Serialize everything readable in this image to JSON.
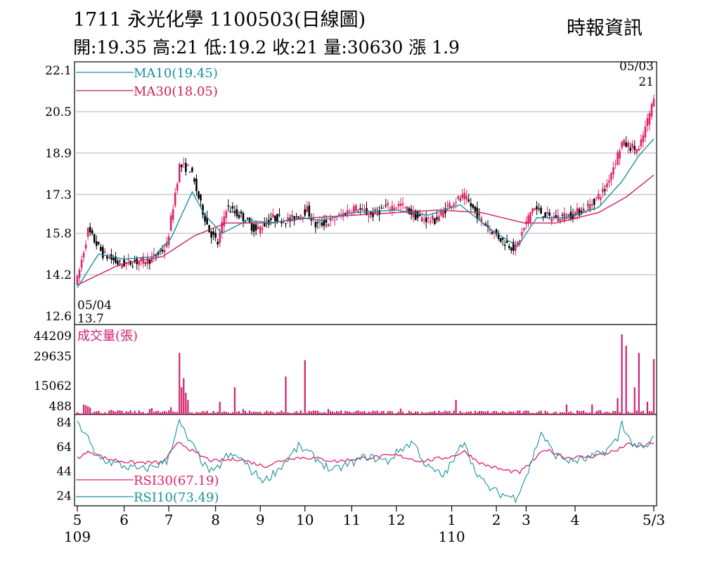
{
  "header": {
    "title": "1711  永光化學 1100503(日線圖)",
    "source": "時報資訊",
    "stats": "開:19.35 高:21 低:19.2 收:21 量:30630 漲 1.9"
  },
  "colors": {
    "up": "#e0206a",
    "down": "#000000",
    "ma10": "#1a8fa0",
    "ma30": "#cc1f5a",
    "rsi30": "#e0206a",
    "rsi10": "#1a8fa0",
    "grid": "#b0b0b0",
    "volume": "#d0206a"
  },
  "chart_data": [
    {
      "type": "candlestick",
      "ylim": [
        12.6,
        22.1
      ],
      "yticks": [
        "22.1",
        "20.5",
        "18.9",
        "17.3",
        "15.8",
        "14.2",
        "12.6"
      ],
      "ytick_values": [
        22.1,
        20.5,
        18.9,
        17.3,
        15.8,
        14.2,
        12.6
      ],
      "legend": [
        {
          "label": "MA10(19.45)",
          "series": "ma10"
        },
        {
          "label": "MA30(18.05)",
          "series": "ma30"
        }
      ],
      "annotations": {
        "start_date": "05/04",
        "start_price": "13.7",
        "end_date": "05/03",
        "end_price": "21"
      },
      "anchors": [
        [
          0,
          14.0
        ],
        [
          5,
          15.9
        ],
        [
          12,
          15.0
        ],
        [
          20,
          14.6
        ],
        [
          35,
          14.8
        ],
        [
          42,
          15.3
        ],
        [
          48,
          18.4
        ],
        [
          53,
          18.3
        ],
        [
          58,
          16.9
        ],
        [
          62,
          15.9
        ],
        [
          66,
          15.4
        ],
        [
          70,
          16.8
        ],
        [
          78,
          16.4
        ],
        [
          84,
          15.9
        ],
        [
          92,
          16.4
        ],
        [
          100,
          16.3
        ],
        [
          108,
          16.7
        ],
        [
          112,
          16.1
        ],
        [
          120,
          16.3
        ],
        [
          130,
          16.8
        ],
        [
          138,
          16.5
        ],
        [
          145,
          16.8
        ],
        [
          152,
          16.9
        ],
        [
          160,
          16.4
        ],
        [
          168,
          16.3
        ],
        [
          176,
          17.0
        ],
        [
          182,
          17.2
        ],
        [
          190,
          16.3
        ],
        [
          200,
          15.5
        ],
        [
          206,
          15.2
        ],
        [
          214,
          16.8
        ],
        [
          222,
          16.4
        ],
        [
          232,
          16.5
        ],
        [
          240,
          16.8
        ],
        [
          248,
          17.5
        ],
        [
          256,
          19.3
        ],
        [
          264,
          19.0
        ],
        [
          271,
          21.0
        ]
      ],
      "ma10_anchors": [
        [
          0,
          13.7
        ],
        [
          10,
          15.0
        ],
        [
          22,
          14.8
        ],
        [
          36,
          14.9
        ],
        [
          44,
          15.6
        ],
        [
          54,
          17.4
        ],
        [
          60,
          16.5
        ],
        [
          68,
          15.8
        ],
        [
          80,
          16.3
        ],
        [
          92,
          16.2
        ],
        [
          105,
          16.4
        ],
        [
          115,
          16.3
        ],
        [
          130,
          16.6
        ],
        [
          150,
          16.7
        ],
        [
          165,
          16.5
        ],
        [
          180,
          16.9
        ],
        [
          195,
          15.9
        ],
        [
          207,
          15.3
        ],
        [
          216,
          16.4
        ],
        [
          230,
          16.4
        ],
        [
          245,
          16.8
        ],
        [
          256,
          17.8
        ],
        [
          264,
          18.8
        ],
        [
          271,
          19.45
        ]
      ],
      "ma30_anchors": [
        [
          0,
          13.8
        ],
        [
          20,
          14.6
        ],
        [
          40,
          14.9
        ],
        [
          55,
          15.7
        ],
        [
          70,
          16.2
        ],
        [
          90,
          16.2
        ],
        [
          110,
          16.4
        ],
        [
          130,
          16.5
        ],
        [
          150,
          16.6
        ],
        [
          170,
          16.7
        ],
        [
          190,
          16.6
        ],
        [
          210,
          16.2
        ],
        [
          225,
          16.2
        ],
        [
          245,
          16.6
        ],
        [
          258,
          17.2
        ],
        [
          271,
          18.05
        ]
      ],
      "n": 272
    },
    {
      "type": "bar",
      "title": "成交量(張)",
      "yticks": [
        "44209",
        "29635",
        "15062",
        "488"
      ],
      "ytick_values": [
        44209,
        29635,
        15062,
        488
      ],
      "ylim": [
        0,
        44209
      ],
      "spikes": [
        [
          3,
          5500
        ],
        [
          4,
          5000
        ],
        [
          5,
          4500
        ],
        [
          6,
          3800
        ],
        [
          16,
          2500
        ],
        [
          34,
          3000
        ],
        [
          35,
          3500
        ],
        [
          44,
          4000
        ],
        [
          48,
          34000
        ],
        [
          49,
          15000
        ],
        [
          50,
          20000
        ],
        [
          51,
          12000
        ],
        [
          52,
          8000
        ],
        [
          67,
          7000
        ],
        [
          74,
          15000
        ],
        [
          78,
          3000
        ],
        [
          98,
          21000
        ],
        [
          107,
          30000
        ],
        [
          118,
          3000
        ],
        [
          152,
          3200
        ],
        [
          178,
          8000
        ],
        [
          230,
          5500
        ],
        [
          242,
          5500
        ],
        [
          254,
          9000
        ],
        [
          256,
          44209
        ],
        [
          258,
          38000
        ],
        [
          262,
          15000
        ],
        [
          264,
          34000
        ],
        [
          268,
          7000
        ],
        [
          271,
          30630
        ]
      ]
    },
    {
      "type": "line",
      "yticks": [
        "84",
        "64",
        "44",
        "24"
      ],
      "ytick_values": [
        84,
        64,
        44,
        24
      ],
      "ylim": [
        18,
        88
      ],
      "legend": [
        {
          "label": "RSI30(67.19)",
          "series": "rsi30"
        },
        {
          "label": "RSI10(73.49)",
          "series": "rsi10"
        }
      ],
      "rsi10_anchors": [
        [
          0,
          82
        ],
        [
          4,
          75
        ],
        [
          8,
          58
        ],
        [
          14,
          52
        ],
        [
          22,
          48
        ],
        [
          30,
          45
        ],
        [
          36,
          48
        ],
        [
          42,
          52
        ],
        [
          48,
          84
        ],
        [
          52,
          70
        ],
        [
          56,
          60
        ],
        [
          60,
          48
        ],
        [
          64,
          42
        ],
        [
          70,
          56
        ],
        [
          76,
          56
        ],
        [
          82,
          44
        ],
        [
          88,
          36
        ],
        [
          96,
          48
        ],
        [
          104,
          64
        ],
        [
          108,
          60
        ],
        [
          114,
          52
        ],
        [
          120,
          44
        ],
        [
          128,
          50
        ],
        [
          136,
          56
        ],
        [
          146,
          52
        ],
        [
          152,
          62
        ],
        [
          158,
          68
        ],
        [
          164,
          48
        ],
        [
          172,
          40
        ],
        [
          178,
          56
        ],
        [
          182,
          70
        ],
        [
          186,
          48
        ],
        [
          192,
          32
        ],
        [
          198,
          26
        ],
        [
          206,
          22
        ],
        [
          212,
          44
        ],
        [
          218,
          76
        ],
        [
          224,
          58
        ],
        [
          232,
          52
        ],
        [
          240,
          54
        ],
        [
          248,
          60
        ],
        [
          254,
          70
        ],
        [
          256,
          84
        ],
        [
          260,
          68
        ],
        [
          264,
          64
        ],
        [
          268,
          62
        ],
        [
          271,
          73.49
        ]
      ],
      "rsi30_anchors": [
        [
          0,
          55
        ],
        [
          6,
          60
        ],
        [
          14,
          54
        ],
        [
          26,
          51
        ],
        [
          40,
          51
        ],
        [
          48,
          68
        ],
        [
          56,
          58
        ],
        [
          64,
          52
        ],
        [
          76,
          54
        ],
        [
          88,
          48
        ],
        [
          100,
          55
        ],
        [
          110,
          55
        ],
        [
          122,
          52
        ],
        [
          136,
          55
        ],
        [
          150,
          57
        ],
        [
          162,
          52
        ],
        [
          176,
          56
        ],
        [
          182,
          60
        ],
        [
          190,
          50
        ],
        [
          200,
          45
        ],
        [
          208,
          43
        ],
        [
          214,
          52
        ],
        [
          220,
          62
        ],
        [
          230,
          55
        ],
        [
          242,
          56
        ],
        [
          254,
          61
        ],
        [
          258,
          66
        ],
        [
          264,
          64
        ],
        [
          271,
          67.19
        ]
      ]
    }
  ],
  "x_axis": {
    "ticks": [
      {
        "label": "5",
        "index": 0
      },
      {
        "label": "6",
        "index": 22
      },
      {
        "label": "7",
        "index": 43
      },
      {
        "label": "8",
        "index": 65
      },
      {
        "label": "9",
        "index": 86
      },
      {
        "label": "10",
        "index": 107
      },
      {
        "label": "11",
        "index": 129
      },
      {
        "label": "12",
        "index": 150
      },
      {
        "label": "1",
        "index": 176
      },
      {
        "label": "2",
        "index": 197
      },
      {
        "label": "3",
        "index": 211
      },
      {
        "label": "4",
        "index": 234
      },
      {
        "label": "5/3",
        "index": 271
      }
    ],
    "year_labels": [
      {
        "label": "109",
        "index": 0
      },
      {
        "label": "110",
        "index": 176
      }
    ]
  }
}
